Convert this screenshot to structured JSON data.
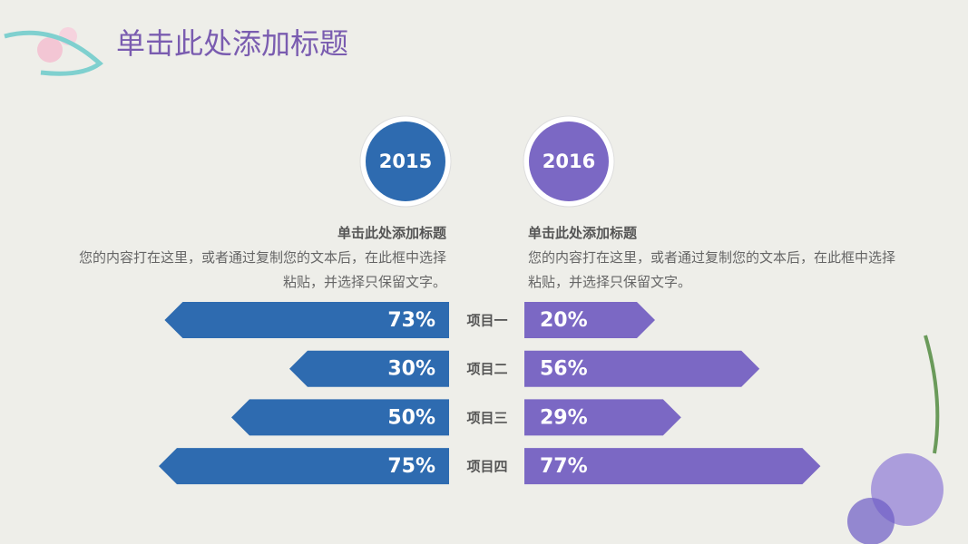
{
  "title": "单击此处添加标题",
  "chart_data": {
    "type": "diverging-bar",
    "categories": [
      "项目一",
      "项目二",
      "项目三",
      "项目四"
    ],
    "series": [
      {
        "name": "2015",
        "color": "#2e6bb0",
        "values": [
          73,
          30,
          50,
          75
        ],
        "value_labels": [
          "73%",
          "30%",
          "50%",
          "75%"
        ],
        "heading": "单击此处添加标题",
        "text": "您的内容打在这里，或者通过复制您的文本后，在此框中选择粘贴，并选择只保留文字。"
      },
      {
        "name": "2016",
        "color": "#7b68c4",
        "values": [
          20,
          56,
          29,
          77
        ],
        "value_labels": [
          "20%",
          "56%",
          "29%",
          "77%"
        ],
        "heading": "单击此处添加标题",
        "text": "您的内容打在这里，或者通过复制您的文本后，在此框中选择粘贴，并选择只保留文字。"
      }
    ]
  }
}
